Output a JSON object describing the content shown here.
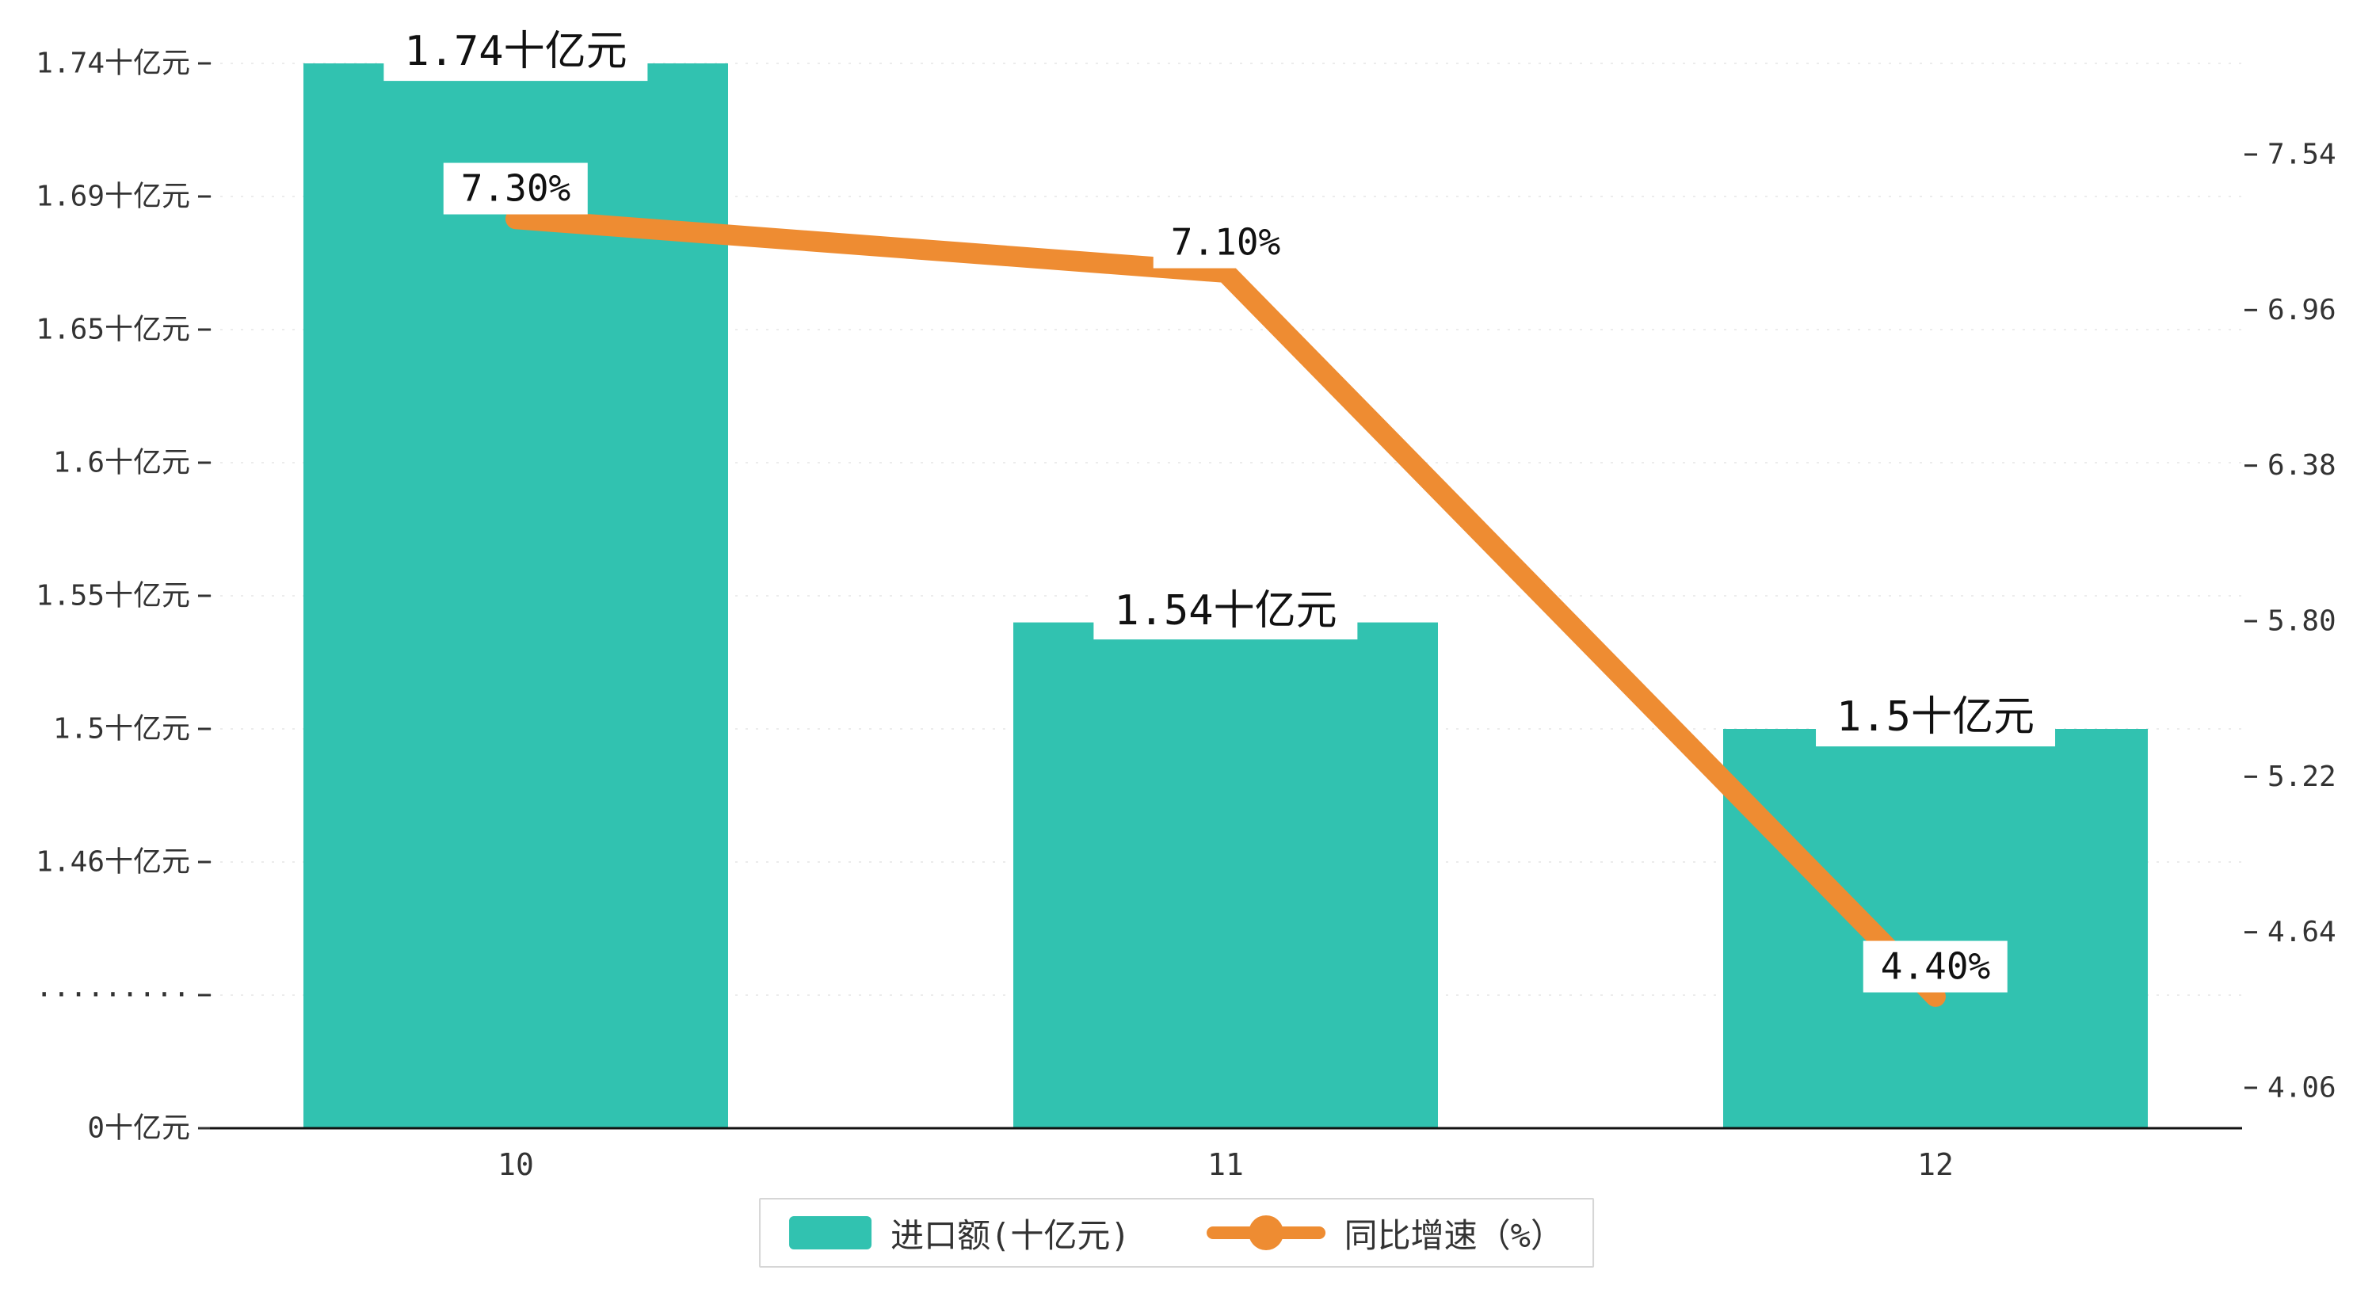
{
  "chart_data": {
    "type": "bar",
    "title": "",
    "categories": [
      "10",
      "11",
      "12"
    ],
    "series": [
      {
        "name": "进口额(十亿元)",
        "type": "bar",
        "values": [
          1.74,
          1.54,
          1.5
        ],
        "labels": [
          "1.74十亿元",
          "1.54十亿元",
          "1.5十亿元"
        ],
        "color": "#31c2b0"
      },
      {
        "name": "同比增速（%）",
        "type": "line",
        "values": [
          7.3,
          7.1,
          4.4
        ],
        "labels": [
          "7.30%",
          "7.10%",
          "4.40%"
        ],
        "color": "#ee8c32",
        "axis": "right"
      }
    ],
    "left_axis": {
      "ticks": [
        "1.74十亿元",
        "1.69十亿元",
        "1.65十亿元",
        "1.6十亿元",
        "1.55十亿元",
        "1.5十亿元",
        "1.46十亿元",
        "·········",
        "0十亿元"
      ],
      "values": [
        1.74,
        1.69,
        1.65,
        1.6,
        1.55,
        1.5,
        1.46,
        null,
        0
      ],
      "has_break": true
    },
    "right_axis": {
      "ticks": [
        "7.54",
        "6.96",
        "6.38",
        "5.80",
        "5.22",
        "4.64",
        "4.06"
      ],
      "max": 7.54,
      "min": 4.06
    },
    "legend": {
      "position": "bottom",
      "items": [
        "进口额(十亿元)",
        "同比增速（%）"
      ]
    },
    "grid": true,
    "background": "#ffffff"
  }
}
